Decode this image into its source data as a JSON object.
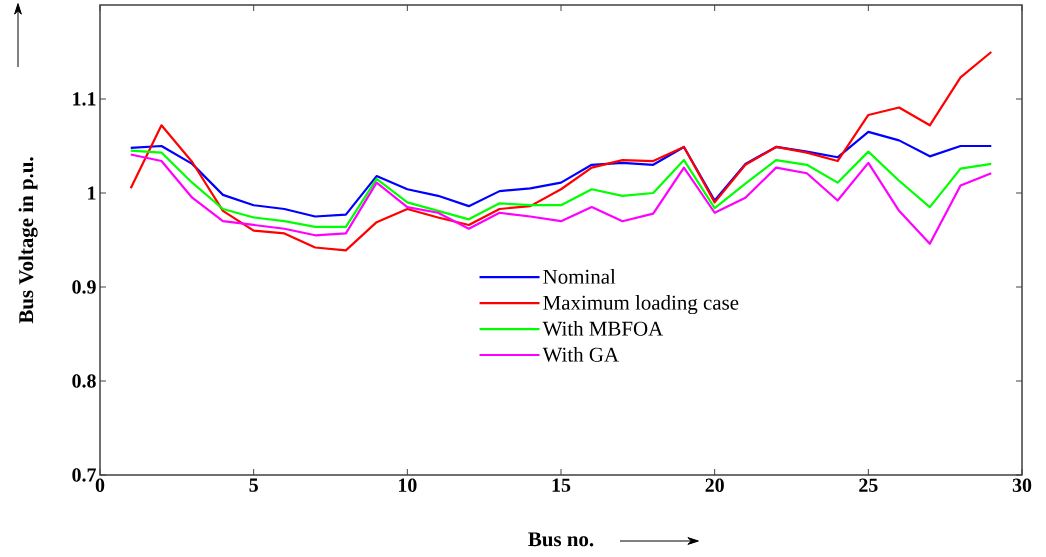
{
  "chart_data": {
    "type": "line",
    "xlabel": "Bus no.",
    "ylabel": "Bus Voltage in p.u.",
    "x": [
      1,
      2,
      3,
      4,
      5,
      6,
      7,
      8,
      9,
      10,
      11,
      12,
      13,
      14,
      15,
      16,
      17,
      18,
      19,
      20,
      21,
      22,
      23,
      24,
      25,
      26,
      27,
      28,
      29
    ],
    "xlim": [
      0,
      30
    ],
    "ylim": [
      0.7,
      1.2
    ],
    "xticks": [
      0,
      5,
      10,
      15,
      20,
      25,
      30
    ],
    "yticks": [
      0.7,
      0.8,
      0.9,
      1,
      1.1
    ],
    "legend": "center",
    "grid": false,
    "marker": "none",
    "line_style": "solid",
    "series": [
      {
        "name": "Nominal",
        "color": "#0000ff",
        "values": [
          1.048,
          1.05,
          1.031,
          0.998,
          0.987,
          0.983,
          0.975,
          0.977,
          1.018,
          1.004,
          0.997,
          0.986,
          1.002,
          1.005,
          1.011,
          1.03,
          1.032,
          1.03,
          1.049,
          0.992,
          1.031,
          1.049,
          1.044,
          1.038,
          1.065,
          1.056,
          1.039,
          1.05,
          1.05
        ]
      },
      {
        "name": "Maximum loading case",
        "color": "#ff0000",
        "values": [
          1.005,
          1.072,
          1.033,
          0.981,
          0.96,
          0.957,
          0.942,
          0.939,
          0.969,
          0.983,
          0.974,
          0.966,
          0.983,
          0.986,
          1.004,
          1.027,
          1.035,
          1.034,
          1.049,
          0.99,
          1.03,
          1.049,
          1.043,
          1.034,
          1.083,
          1.091,
          1.072,
          1.123,
          1.15
        ]
      },
      {
        "name": "With MBFOA",
        "color": "#00ff00",
        "values": [
          1.045,
          1.043,
          1.011,
          0.983,
          0.974,
          0.97,
          0.964,
          0.964,
          1.015,
          0.99,
          0.981,
          0.972,
          0.989,
          0.987,
          0.987,
          1.004,
          0.997,
          1.0,
          1.035,
          0.984,
          1.01,
          1.035,
          1.03,
          1.011,
          1.044,
          1.013,
          0.985,
          1.026,
          1.031
        ]
      },
      {
        "name": "With GA",
        "color": "#ff00ff",
        "values": [
          1.041,
          1.034,
          0.995,
          0.97,
          0.966,
          0.962,
          0.955,
          0.957,
          1.011,
          0.985,
          0.979,
          0.962,
          0.979,
          0.975,
          0.97,
          0.985,
          0.97,
          0.978,
          1.027,
          0.979,
          0.995,
          1.027,
          1.021,
          0.992,
          1.032,
          0.981,
          0.946,
          1.008,
          1.021
        ]
      }
    ]
  }
}
